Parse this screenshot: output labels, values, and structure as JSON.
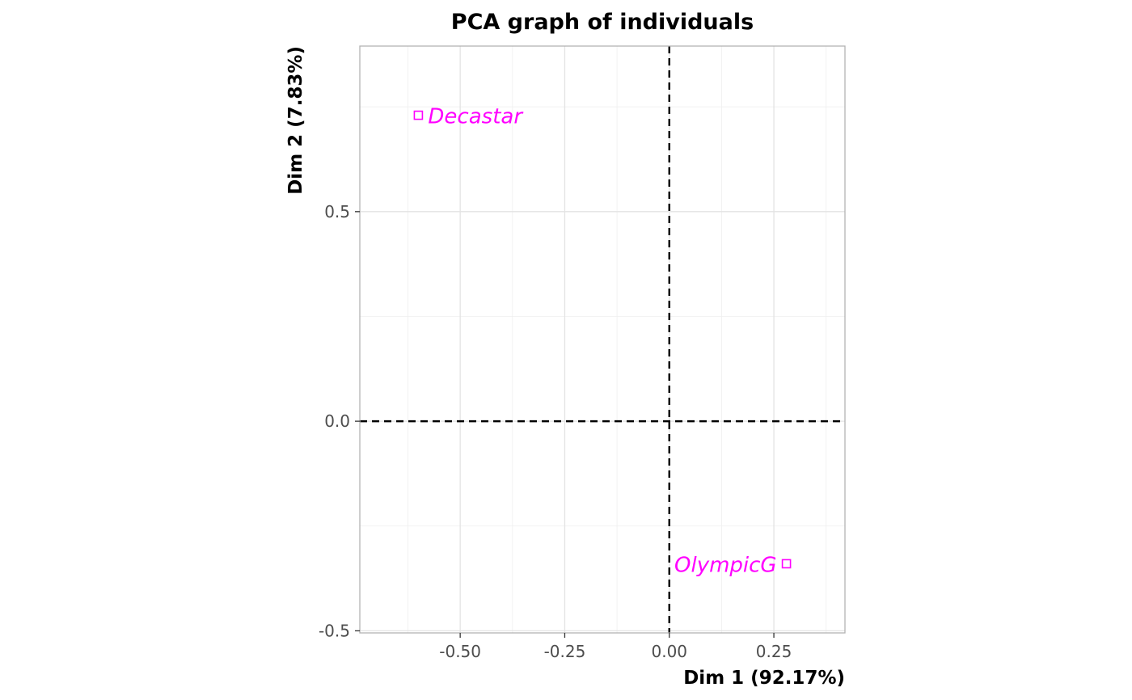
{
  "chart_data": {
    "type": "scatter",
    "title": "PCA graph of individuals",
    "xlabel": "Dim 1 (92.17%)",
    "ylabel": "Dim 2 (7.83%)",
    "xlim": [
      -0.74,
      0.42
    ],
    "ylim": [
      -0.505,
      0.895
    ],
    "x_ticks": [
      -0.5,
      -0.25,
      0.0,
      0.25
    ],
    "x_tick_labels": [
      "-0.50",
      "-0.25",
      "0.00",
      "0.25"
    ],
    "y_ticks": [
      -0.5,
      0.0,
      0.5
    ],
    "y_tick_labels": [
      "-0.5",
      "0.0",
      "0.5"
    ],
    "grid": true,
    "reference_lines": {
      "x": 0,
      "y": 0,
      "style": "dashed"
    },
    "point_color": "#ff00ff",
    "points": [
      {
        "label": "Decastar",
        "x": -0.6,
        "y": 0.73,
        "label_side": "right"
      },
      {
        "label": "OlympicG",
        "x": 0.28,
        "y": -0.34,
        "label_side": "left"
      }
    ]
  }
}
